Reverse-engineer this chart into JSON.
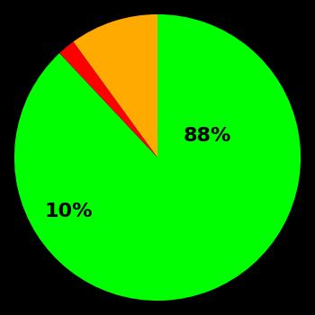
{
  "slices": [
    88,
    2,
    10
  ],
  "colors": [
    "#00ff00",
    "#ff0000",
    "#ffaa00"
  ],
  "labels": [
    "88%",
    "",
    "10%"
  ],
  "background_color": "#000000",
  "startangle": 90,
  "label_fontsize": 16,
  "label_fontweight": "bold",
  "figsize": [
    3.5,
    3.5
  ],
  "dpi": 100
}
